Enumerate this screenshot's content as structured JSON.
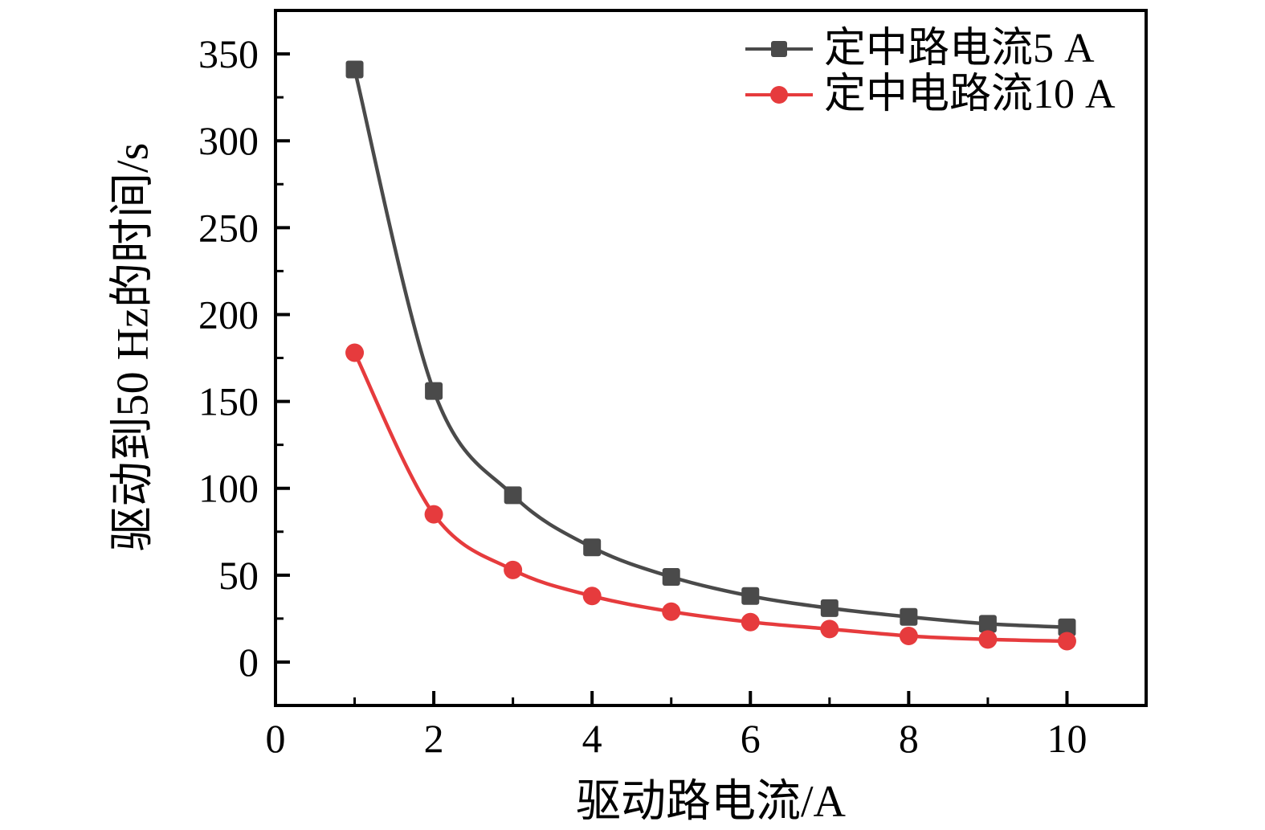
{
  "figure": {
    "background": "#ffffff",
    "frame_color": "#000000",
    "text_color": "#000000"
  },
  "chart_data": {
    "type": "line",
    "title": "",
    "xlabel": "驱动路电流/A",
    "ylabel": "驱动到50 Hz的时间/s",
    "x": [
      1,
      2,
      3,
      4,
      5,
      6,
      7,
      8,
      9,
      10
    ],
    "series": [
      {
        "name": "定中路电流5 A",
        "color": "#4a4a4a",
        "marker": "square",
        "values": [
          341,
          156,
          96,
          66,
          49,
          38,
          31,
          26,
          22,
          20
        ]
      },
      {
        "name": "定中电路流10 A",
        "color": "#e63b3d",
        "marker": "circle",
        "values": [
          178,
          85,
          53,
          38,
          29,
          23,
          19,
          15,
          13,
          12
        ]
      }
    ],
    "xlim": [
      0,
      11
    ],
    "ylim": [
      -25,
      375
    ],
    "x_major_ticks": [
      0,
      2,
      4,
      6,
      8,
      10
    ],
    "x_minor_ticks": [
      1,
      3,
      5,
      7,
      9
    ],
    "y_major_ticks": [
      0,
      50,
      100,
      150,
      200,
      250,
      300,
      350
    ],
    "y_minor_ticks": [
      25,
      75,
      125,
      175,
      225,
      275,
      325
    ],
    "grid": false,
    "legend_position": "top-right",
    "tick_direction": "in"
  }
}
